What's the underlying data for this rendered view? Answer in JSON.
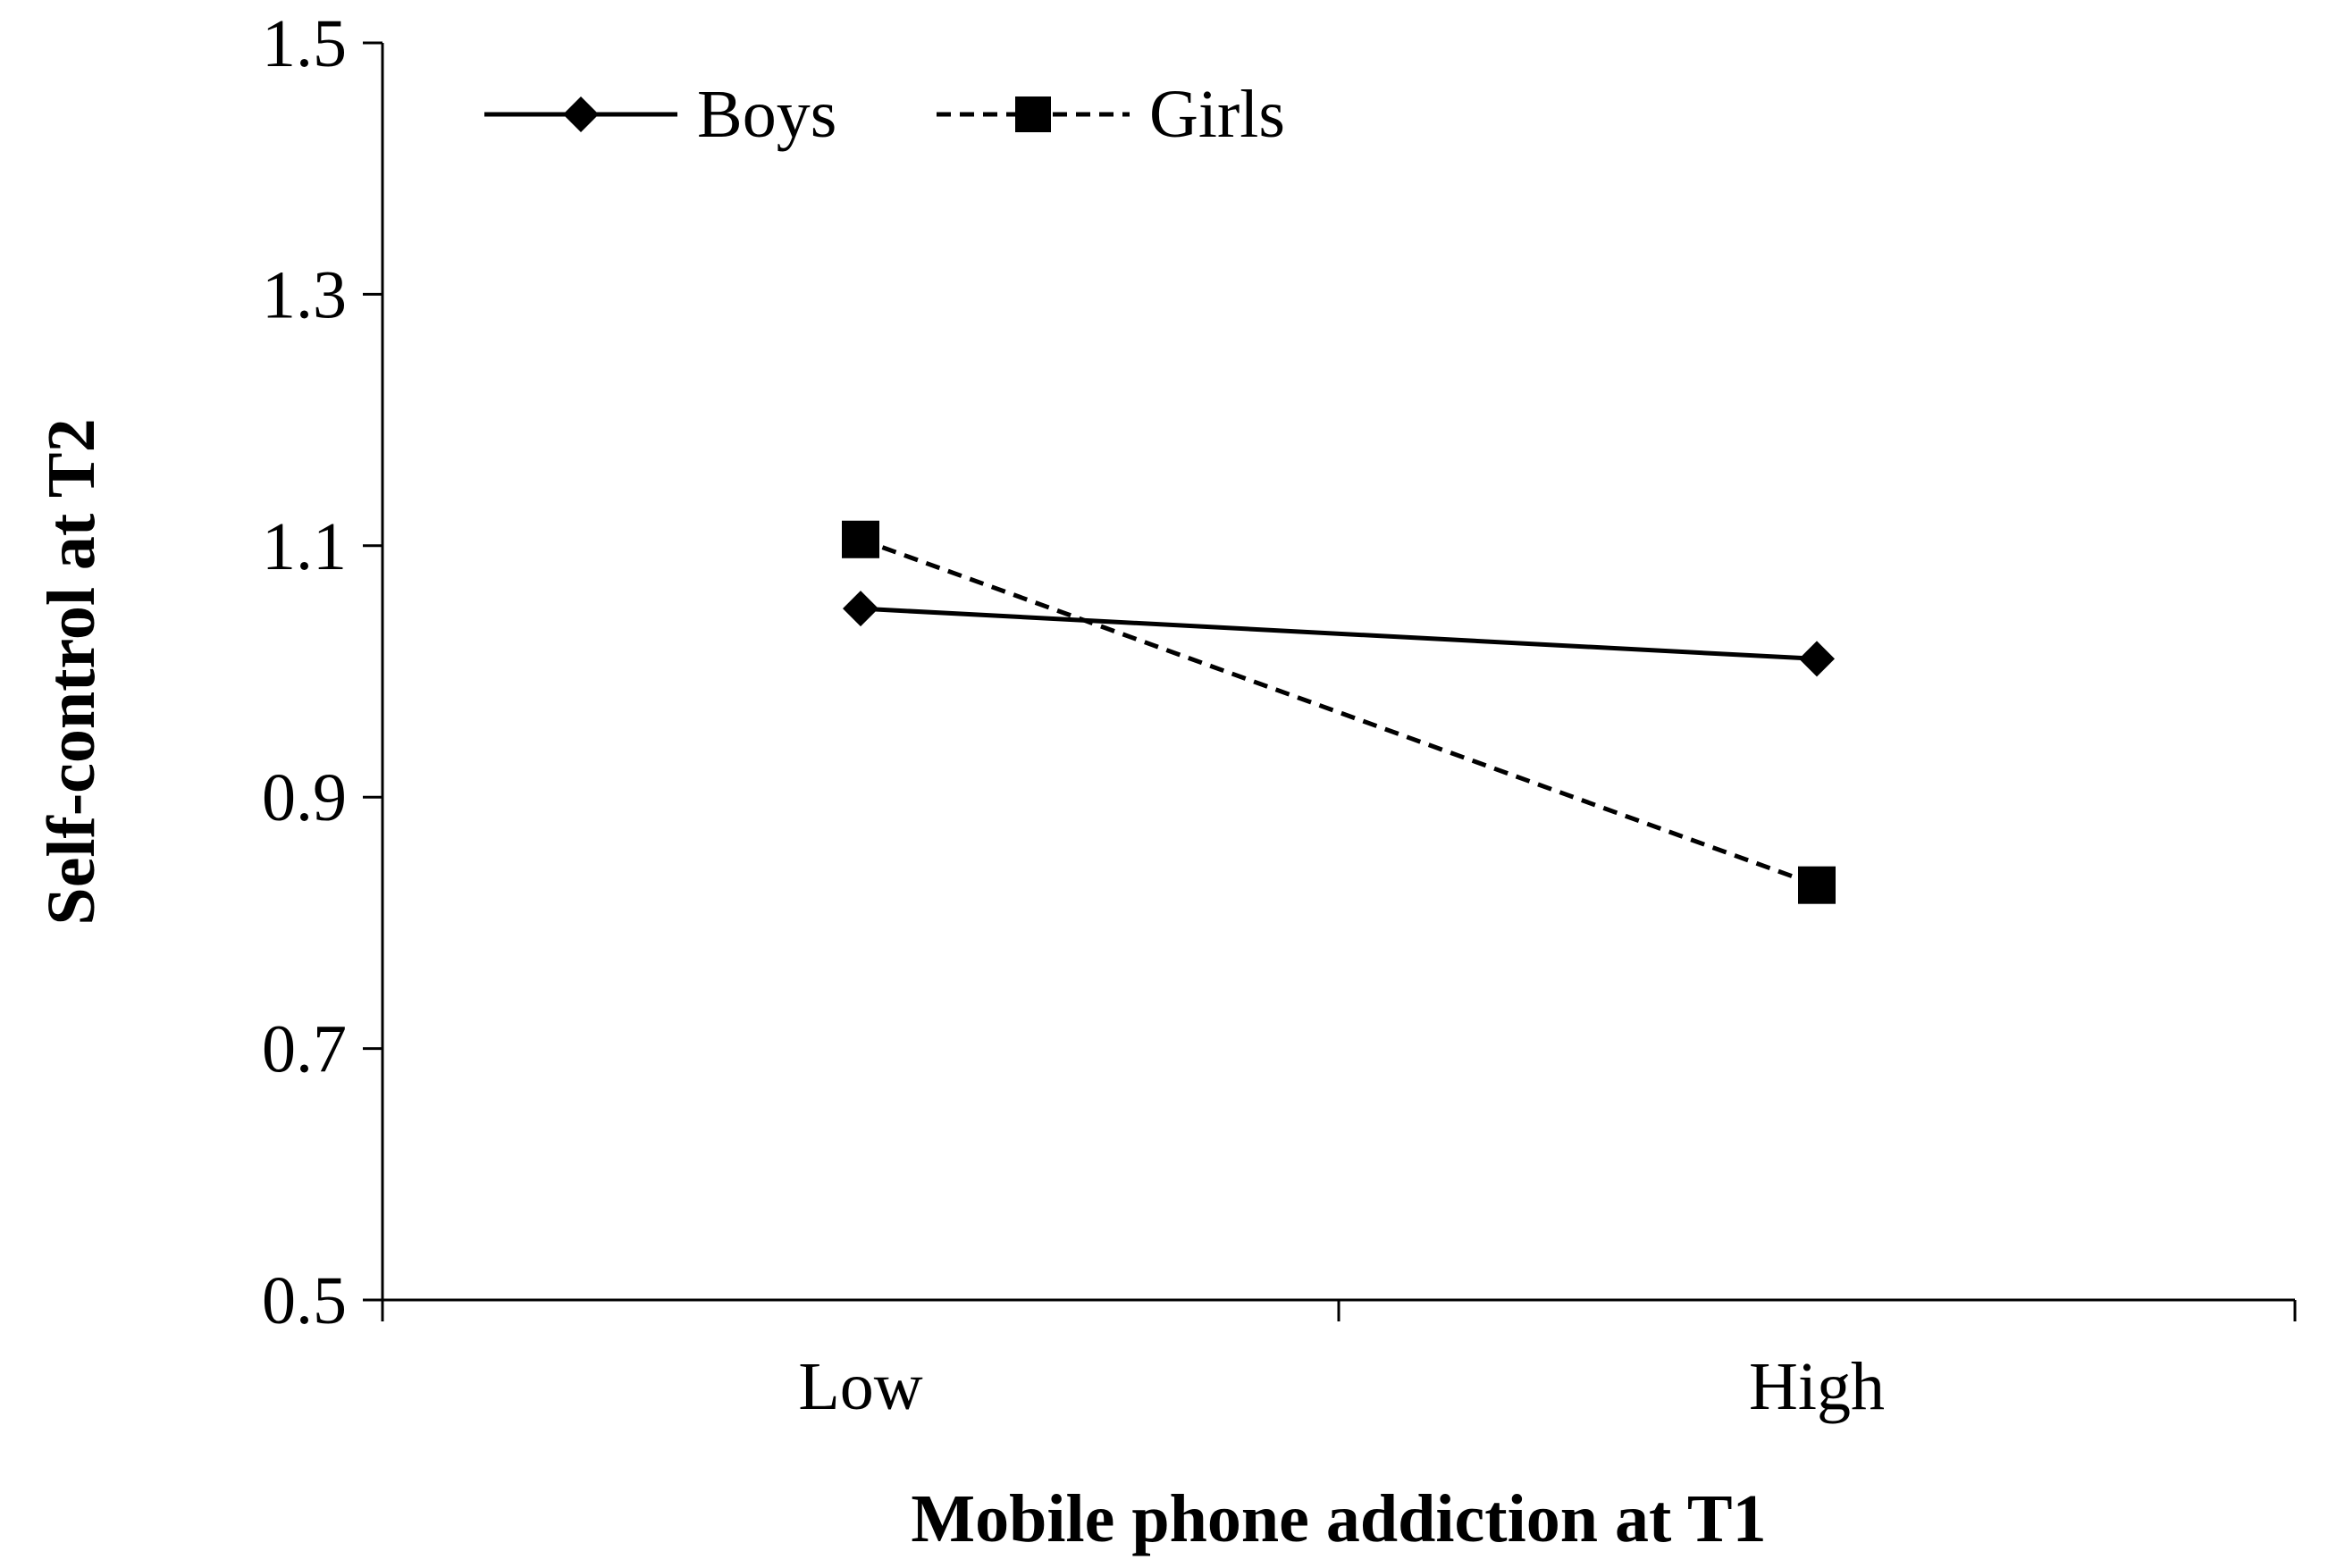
{
  "chart_data": {
    "type": "line",
    "title": "",
    "xlabel": "Mobile phone addiction at T1",
    "ylabel": "Self-control at T2",
    "categories": [
      "Low",
      "High"
    ],
    "ylim": [
      0.5,
      1.5
    ],
    "yticks": [
      "0.5",
      "0.7",
      "0.9",
      "1.1",
      "1.3",
      "1.5"
    ],
    "grid": false,
    "legend_position": "top-left",
    "series": [
      {
        "name": "Boys",
        "values": [
          1.05,
          1.01
        ],
        "line_style": "solid",
        "marker": "diamond",
        "color": "#000000"
      },
      {
        "name": "Girls",
        "values": [
          1.105,
          0.83
        ],
        "line_style": "dashed",
        "marker": "square",
        "color": "#000000"
      }
    ]
  }
}
